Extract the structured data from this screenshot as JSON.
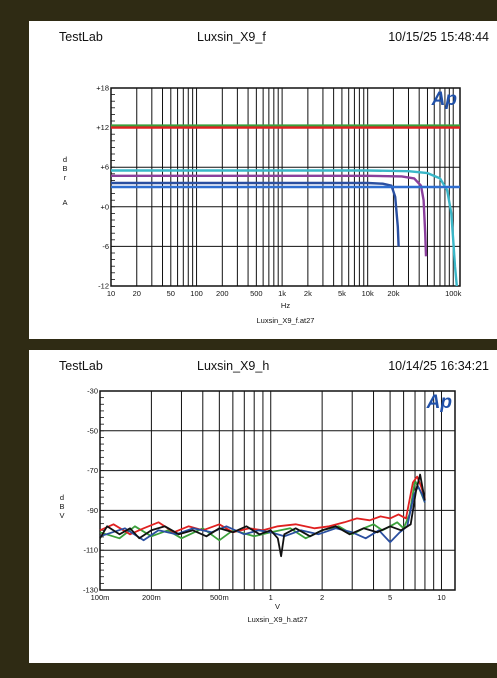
{
  "colors": {
    "frame": "#2f2b14",
    "panel": "#ffffff",
    "logo": "#2050a8"
  },
  "logo_text": "Ap",
  "charts": [
    {
      "header": {
        "lab": "TestLab",
        "name": "Luxsin_X9_f",
        "timestamp": "10/15/25 15:48:44"
      },
      "filename": "Luxsin_X9_f.at27"
    },
    {
      "header": {
        "lab": "TestLab",
        "name": "Luxsin_X9_h",
        "timestamp": "10/14/25 16:34:21"
      },
      "filename": "Luxsin_X9_h.at27"
    }
  ],
  "chart_data": [
    {
      "type": "line",
      "xscale": "log",
      "xlim": [
        10,
        120000
      ],
      "ylim": [
        -12,
        18
      ],
      "xlabel": "Hz",
      "ylabel": [
        "d",
        "B",
        "r",
        "",
        "A"
      ],
      "xticks": [
        {
          "v": 10,
          "label": "10"
        },
        {
          "v": 20,
          "label": "20"
        },
        {
          "v": 50,
          "label": "50"
        },
        {
          "v": 100,
          "label": "100"
        },
        {
          "v": 200,
          "label": "200"
        },
        {
          "v": 500,
          "label": "500"
        },
        {
          "v": 1000,
          "label": "1k"
        },
        {
          "v": 2000,
          "label": "2k"
        },
        {
          "v": 5000,
          "label": "5k"
        },
        {
          "v": 10000,
          "label": "10k"
        },
        {
          "v": 20000,
          "label": "20k"
        },
        {
          "v": 100000,
          "label": "100k"
        }
      ],
      "yticks": [
        {
          "v": 18,
          "label": "+18"
        },
        {
          "v": 12,
          "label": "+12"
        },
        {
          "v": 6,
          "label": "+6"
        },
        {
          "v": 0,
          "label": "+0"
        },
        {
          "v": -6,
          "label": "-6"
        },
        {
          "v": -12,
          "label": "-12"
        }
      ],
      "grid": true,
      "series": [
        {
          "color": "#3ab7c8",
          "x": [
            10,
            1000,
            10000,
            30000,
            50000,
            70000,
            85000,
            95000,
            100000,
            105000,
            110000
          ],
          "y": [
            5.5,
            5.5,
            5.5,
            5.4,
            5.1,
            4.3,
            2.5,
            -1,
            -5,
            -9,
            -12
          ]
        },
        {
          "color": "#8a3f9c",
          "x": [
            10,
            1000,
            10000,
            25000,
            35000,
            42000,
            45000,
            47000,
            48000
          ],
          "y": [
            4.7,
            4.7,
            4.7,
            4.6,
            4.3,
            3.2,
            1,
            -4,
            -7.5
          ]
        },
        {
          "color": "#2a4fa0",
          "x": [
            10,
            1000,
            10000,
            15000,
            19000,
            21000,
            22500,
            23000
          ],
          "y": [
            3.6,
            3.6,
            3.6,
            3.5,
            3.2,
            1.5,
            -3,
            -6
          ]
        },
        {
          "color": "#2f6ed0",
          "x": [
            10,
            120000
          ],
          "y": [
            3.0,
            3.0
          ]
        },
        {
          "color": "#3ba03b",
          "x": [
            10,
            120000
          ],
          "y": [
            12.3,
            12.3
          ]
        },
        {
          "color": "#e02020",
          "x": [
            10,
            120000
          ],
          "y": [
            12,
            12
          ]
        }
      ]
    },
    {
      "type": "line",
      "xscale": "log",
      "xlim": [
        0.1,
        12
      ],
      "ylim": [
        -130,
        -30
      ],
      "xlabel": "V",
      "ylabel": [
        "d",
        "B",
        "V"
      ],
      "xticks": [
        {
          "v": 0.1,
          "label": "100m"
        },
        {
          "v": 0.2,
          "label": "200m"
        },
        {
          "v": 0.5,
          "label": "500m"
        },
        {
          "v": 1,
          "label": "1"
        },
        {
          "v": 2,
          "label": "2"
        },
        {
          "v": 5,
          "label": "5"
        },
        {
          "v": 10,
          "label": "10"
        }
      ],
      "yticks": [
        {
          "v": -30,
          "label": "-30"
        },
        {
          "v": -50,
          "label": "-50"
        },
        {
          "v": -70,
          "label": "-70"
        },
        {
          "v": -90,
          "label": "-90"
        },
        {
          "v": -110,
          "label": "-110"
        },
        {
          "v": -130,
          "label": "-130"
        }
      ],
      "grid": true,
      "series": [
        {
          "color": "#3ba03b",
          "x": [
            0.1,
            0.13,
            0.16,
            0.2,
            0.25,
            0.3,
            0.4,
            0.5,
            0.6,
            0.8,
            1,
            1.3,
            1.6,
            2,
            2.5,
            3,
            3.5,
            4,
            4.5,
            5,
            5.5,
            6,
            6.5,
            7,
            7.5,
            8
          ],
          "y": [
            -101,
            -104,
            -98,
            -103,
            -100,
            -104,
            -99,
            -105,
            -100,
            -103,
            -101,
            -99,
            -104,
            -100,
            -98,
            -102,
            -99,
            -97,
            -100,
            -98,
            -96,
            -99,
            -92,
            -75,
            -80,
            -86
          ]
        },
        {
          "color": "#e02020",
          "x": [
            0.1,
            0.12,
            0.15,
            0.18,
            0.22,
            0.27,
            0.33,
            0.4,
            0.5,
            0.6,
            0.75,
            0.9,
            1.1,
            1.4,
            1.8,
            2.2,
            2.7,
            3.2,
            3.8,
            4.4,
            5,
            5.6,
            6.2,
            6.8,
            7.2,
            7.6,
            8
          ],
          "y": [
            -100,
            -97,
            -102,
            -99,
            -96,
            -101,
            -98,
            -100,
            -97,
            -101,
            -99,
            -100,
            -98,
            -97,
            -99,
            -98,
            -96,
            -94,
            -95,
            -93,
            -94,
            -92,
            -94,
            -76,
            -73,
            -78,
            -84
          ]
        },
        {
          "color": "#2a4fa0",
          "x": [
            0.1,
            0.14,
            0.18,
            0.22,
            0.28,
            0.35,
            0.45,
            0.55,
            0.7,
            0.85,
            1,
            1.2,
            1.5,
            1.9,
            2.4,
            3,
            3.6,
            4.3,
            5,
            5.7,
            6.3,
            6.9,
            7.3,
            7.7,
            8
          ],
          "y": [
            -103,
            -99,
            -105,
            -100,
            -102,
            -99,
            -101,
            -98,
            -102,
            -100,
            -101,
            -103,
            -100,
            -102,
            -99,
            -101,
            -104,
            -100,
            -106,
            -101,
            -98,
            -82,
            -78,
            -82,
            -86
          ]
        },
        {
          "color": "#111111",
          "x": [
            0.1,
            0.11,
            0.13,
            0.15,
            0.17,
            0.2,
            0.24,
            0.29,
            0.35,
            0.42,
            0.5,
            0.6,
            0.72,
            0.86,
            1,
            1.1,
            1.15,
            1.2,
            1.4,
            1.7,
            2,
            2.4,
            2.9,
            3.5,
            4.2,
            5,
            5.8,
            6.6,
            7.1,
            7.5,
            8
          ],
          "y": [
            -104,
            -98,
            -102,
            -99,
            -104,
            -100,
            -98,
            -102,
            -100,
            -103,
            -99,
            -101,
            -98,
            -102,
            -100,
            -104,
            -113,
            -102,
            -99,
            -103,
            -100,
            -98,
            -102,
            -99,
            -101,
            -98,
            -100,
            -97,
            -80,
            -72,
            -85
          ]
        }
      ]
    }
  ]
}
